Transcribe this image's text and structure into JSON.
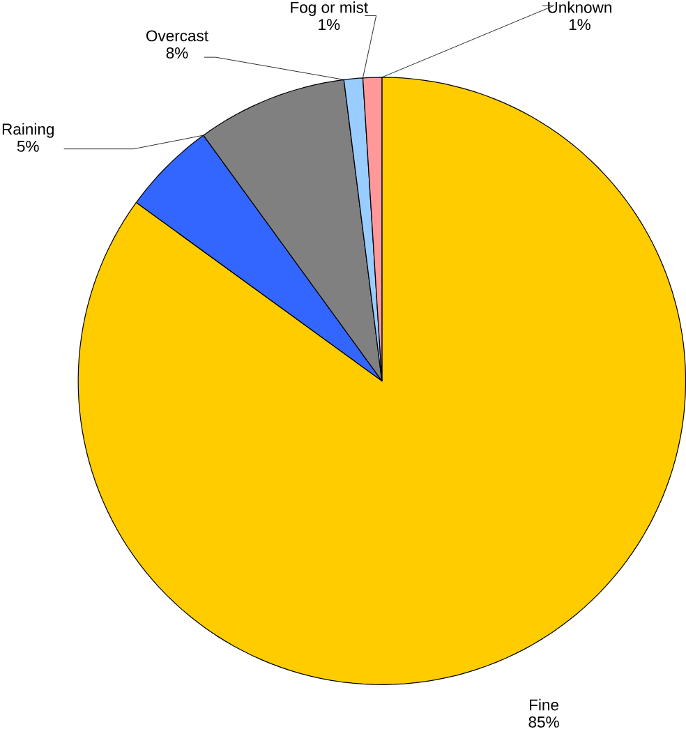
{
  "chart_data": {
    "type": "pie",
    "categories": [
      "Fine",
      "Raining",
      "Overcast",
      "Fog or mist",
      "Unknown"
    ],
    "values": [
      85,
      5,
      8,
      1,
      1
    ],
    "colors": [
      "#ffcc00",
      "#3366ff",
      "#808080",
      "#99ccff",
      "#ff9999"
    ],
    "value_labels": [
      "85%",
      "5%",
      "8%",
      "1%",
      "1%"
    ]
  }
}
